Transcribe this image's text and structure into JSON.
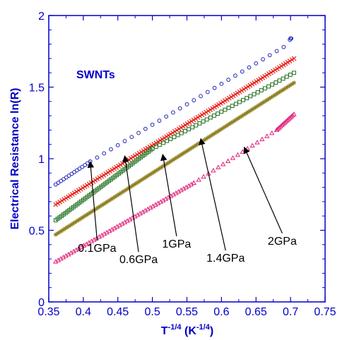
{
  "chart_data": {
    "type": "scatter",
    "title": "",
    "panel_label": "SWNTs",
    "xlabel": {
      "main": "T",
      "main_sup": "-1/4",
      "unit": "(K",
      "unit_sup": "-1/4",
      "unit_close": ")"
    },
    "ylabel": "Electrical Resistance ln(R)",
    "xlim": [
      0.35,
      0.75
    ],
    "ylim": [
      0,
      2
    ],
    "xticks": [
      "0.35",
      "0.4",
      "0.45",
      "0.5",
      "0.55",
      "0.6",
      "0.65",
      "0.7",
      "0.75"
    ],
    "yticks": [
      "0",
      "0.5",
      "1",
      "1.5",
      "2"
    ],
    "grid": false,
    "legend": "none",
    "series": [
      {
        "marker": "circle",
        "color": "#1f24b8",
        "annotation": "0.1GPa",
        "arrow_tip": [
          0.41,
          0.98
        ],
        "label_pos": [
          0.42,
          0.35
        ],
        "segments": [
          {
            "x_start": 0.36,
            "x_end": 0.41,
            "y_start": 0.82,
            "y_end": 0.98,
            "count": 14
          },
          {
            "x_start": 0.41,
            "x_end": 0.69,
            "y_start": 0.98,
            "y_end": 1.78,
            "count": 29
          }
        ],
        "extra_points": [
          [
            0.7,
            1.84
          ],
          [
            0.701,
            1.84
          ],
          [
            0.699,
            1.83
          ]
        ]
      },
      {
        "marker": "cross",
        "color": "#e8241c",
        "annotation": "0.6GPa",
        "arrow_tip": [
          0.46,
          1.02
        ],
        "label_pos": [
          0.48,
          0.27
        ],
        "segments": [
          {
            "x_start": 0.36,
            "x_end": 0.705,
            "y_start": 0.68,
            "y_end": 1.7,
            "count": 115
          }
        ],
        "extra_points": []
      },
      {
        "marker": "square",
        "color": "#1c6e1c",
        "annotation": "1GPa",
        "arrow_tip": [
          0.515,
          1.03
        ],
        "label_pos": [
          0.535,
          0.38
        ],
        "segments": [
          {
            "x_start": 0.36,
            "x_end": 0.5,
            "y_start": 0.57,
            "y_end": 1.07,
            "count": 50
          },
          {
            "x_start": 0.5,
            "x_end": 0.705,
            "y_start": 1.07,
            "y_end": 1.6,
            "count": 40
          }
        ],
        "extra_points": []
      },
      {
        "marker": "star",
        "color": "#8e7e1e",
        "annotation": "1.4GPa",
        "arrow_tip": [
          0.57,
          1.14
        ],
        "label_pos": [
          0.606,
          0.28
        ],
        "segments": [
          {
            "x_start": 0.36,
            "x_end": 0.705,
            "y_start": 0.47,
            "y_end": 1.53,
            "count": 125
          }
        ],
        "extra_points": []
      },
      {
        "marker": "triangle",
        "color": "#e0207a",
        "annotation": "2GPa",
        "arrow_tip": [
          0.633,
          1.08
        ],
        "label_pos": [
          0.688,
          0.4
        ],
        "segments": [
          {
            "x_start": 0.36,
            "x_end": 0.56,
            "y_start": 0.28,
            "y_end": 0.83,
            "count": 55
          },
          {
            "x_start": 0.56,
            "x_end": 0.68,
            "y_start": 0.83,
            "y_end": 1.2,
            "count": 18
          },
          {
            "x_start": 0.68,
            "x_end": 0.705,
            "y_start": 1.2,
            "y_end": 1.31,
            "count": 14
          }
        ],
        "extra_points": []
      }
    ]
  }
}
